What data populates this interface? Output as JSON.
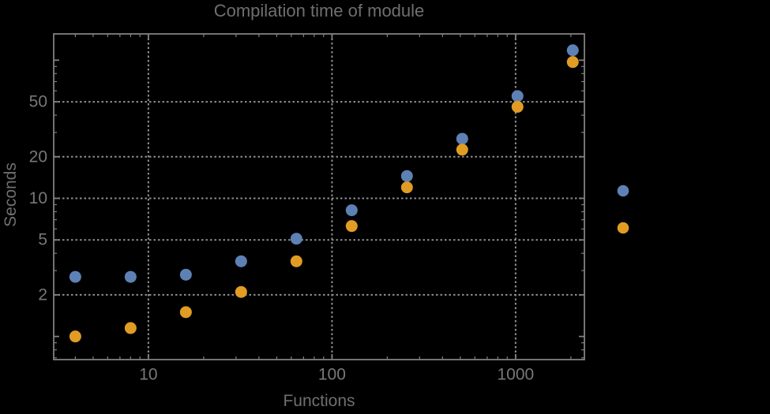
{
  "colors": {
    "background": "#000000",
    "frame": "#808080",
    "grid": "#8f8f8f",
    "tick_label": "#787878",
    "title_text": "#6f6f6f",
    "axis_label_text": "#6f6f6f",
    "series1": "#5e81b5",
    "series2": "#e19c24"
  },
  "chart_data": {
    "type": "scatter",
    "title": "Compilation time of module",
    "xlabel": "Functions",
    "ylabel": "Seconds",
    "x_scale": "log",
    "y_scale": "log",
    "grid": "dotted",
    "x": [
      4,
      8,
      16,
      32,
      64,
      128,
      256,
      512,
      1024,
      2048
    ],
    "series": [
      {
        "name": "series-1-blue",
        "color": "#5e81b5",
        "values": [
          2.7,
          2.7,
          2.8,
          3.5,
          5.1,
          8.2,
          14.5,
          27,
          55,
          118
        ]
      },
      {
        "name": "series-2-orange",
        "color": "#e19c24",
        "values": [
          1.0,
          1.15,
          1.5,
          2.1,
          3.5,
          6.3,
          12,
          22.5,
          46,
          97
        ]
      }
    ],
    "x_tick_values": [
      10,
      100,
      1000
    ],
    "x_tick_labels": [
      "10",
      "100",
      "1000"
    ],
    "y_tick_values": [
      2,
      5,
      10,
      20,
      50
    ],
    "y_tick_labels": [
      "2",
      "5",
      "10",
      "20",
      "50"
    ],
    "x_range": [
      3.05,
      2370
    ],
    "y_range": [
      0.68,
      155
    ],
    "legend": {
      "position": "right-outside",
      "markers": [
        {
          "name": "legend-marker-series-1",
          "color": "#5e81b5"
        },
        {
          "name": "legend-marker-series-2",
          "color": "#e19c24"
        }
      ]
    }
  }
}
